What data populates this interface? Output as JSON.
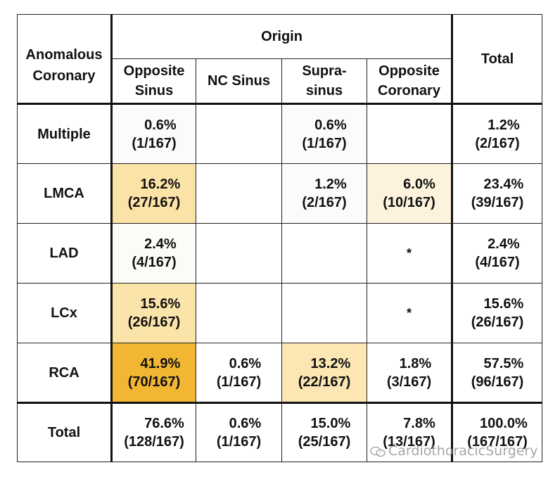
{
  "chart_data": {
    "type": "table",
    "corner_header": "Anomalous Coronary",
    "group_header": "Origin",
    "columns": [
      "Opposite Sinus",
      "NC Sinus",
      "Supra-sinus",
      "Opposite Coronary"
    ],
    "total_header": "Total",
    "rows": [
      {
        "label": "Multiple",
        "cells": [
          {
            "pct": "0.6%",
            "frac": "(1/167)",
            "shade": "#fbfbfd"
          },
          {
            "pct": "",
            "frac": "",
            "shade": "#ffffff"
          },
          {
            "pct": "0.6%",
            "frac": "(1/167)",
            "shade": "#fbfbfd"
          },
          {
            "pct": "",
            "frac": "",
            "shade": "#ffffff"
          }
        ],
        "total": {
          "pct": "1.2%",
          "frac": "(2/167)"
        }
      },
      {
        "label": "LMCA",
        "cells": [
          {
            "pct": "16.2%",
            "frac": "(27/167)",
            "shade": "#fbe2a6"
          },
          {
            "pct": "",
            "frac": "",
            "shade": "#ffffff"
          },
          {
            "pct": "1.2%",
            "frac": "(2/167)",
            "shade": "#fcfbfb"
          },
          {
            "pct": "6.0%",
            "frac": "(10/167)",
            "shade": "#fdf3dd"
          }
        ],
        "total": {
          "pct": "23.4%",
          "frac": "(39/167)"
        }
      },
      {
        "label": "LAD",
        "cells": [
          {
            "pct": "2.4%",
            "frac": "(4/167)",
            "shade": "#fcfbf6"
          },
          {
            "pct": "",
            "frac": "",
            "shade": "#ffffff"
          },
          {
            "pct": "",
            "frac": "",
            "shade": "#ffffff"
          },
          {
            "pct": "*",
            "frac": "",
            "shade": "#ffffff"
          }
        ],
        "total": {
          "pct": "2.4%",
          "frac": "(4/167)"
        }
      },
      {
        "label": "LCx",
        "cells": [
          {
            "pct": "15.6%",
            "frac": "(26/167)",
            "shade": "#fbe4aa"
          },
          {
            "pct": "",
            "frac": "",
            "shade": "#ffffff"
          },
          {
            "pct": "",
            "frac": "",
            "shade": "#ffffff"
          },
          {
            "pct": "*",
            "frac": "",
            "shade": "#ffffff"
          }
        ],
        "total": {
          "pct": "15.6%",
          "frac": "(26/167)"
        }
      },
      {
        "label": "RCA",
        "cells": [
          {
            "pct": "41.9%",
            "frac": "(70/167)",
            "shade": "#f2b633"
          },
          {
            "pct": "0.6%",
            "frac": "(1/167)",
            "shade": "#ffffff"
          },
          {
            "pct": "13.2%",
            "frac": "(22/167)",
            "shade": "#fbe6b4"
          },
          {
            "pct": "1.8%",
            "frac": "(3/167)",
            "shade": "#ffffff"
          }
        ],
        "total": {
          "pct": "57.5%",
          "frac": "(96/167)"
        }
      }
    ],
    "total_row": {
      "label": "Total",
      "cells": [
        {
          "pct": "76.6%",
          "frac": "(128/167)"
        },
        {
          "pct": "0.6%",
          "frac": "(1/167)"
        },
        {
          "pct": "15.0%",
          "frac": "(25/167)"
        },
        {
          "pct": "7.8%",
          "frac": "(13/167)"
        }
      ],
      "total": {
        "pct": "100.0%",
        "frac": "(167/167)"
      }
    }
  },
  "watermark": "CardiothoracicSurgery"
}
